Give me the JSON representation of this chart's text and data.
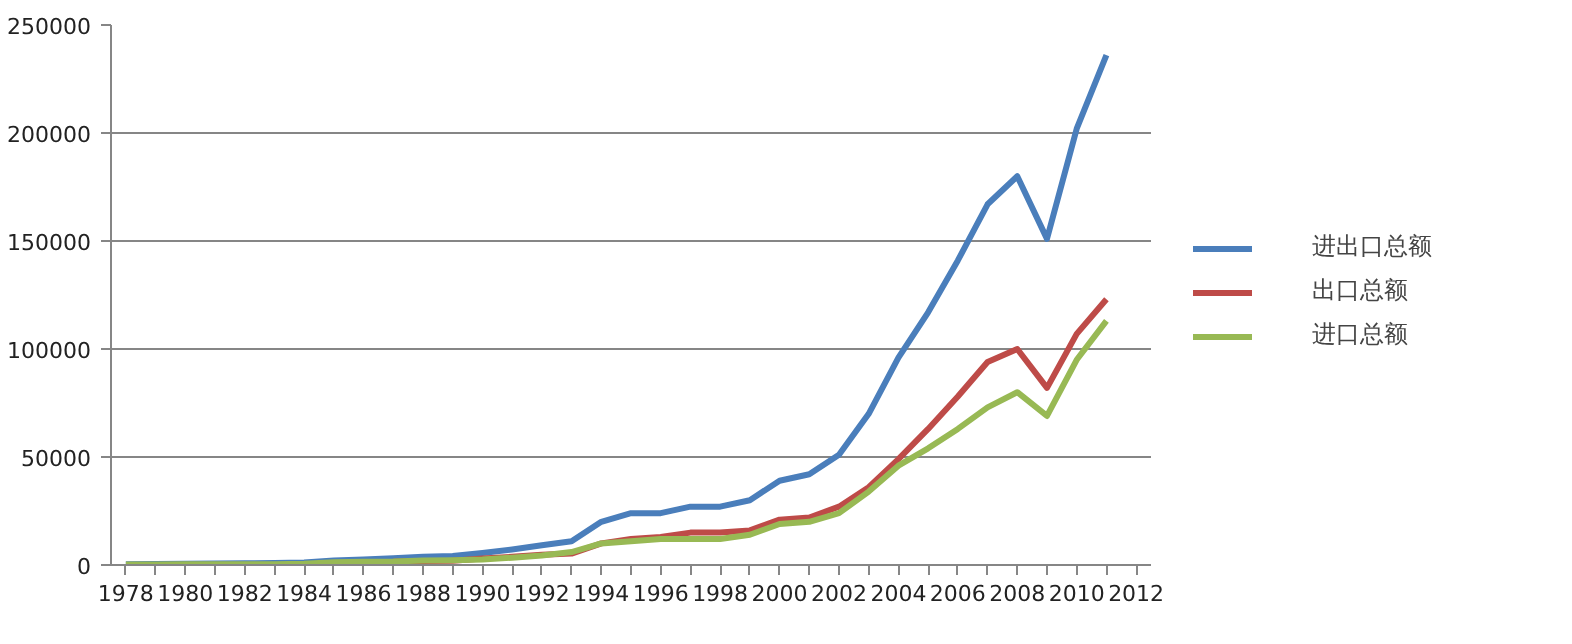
{
  "chart_data": {
    "type": "line",
    "x": [
      1978,
      1979,
      1980,
      1981,
      1982,
      1983,
      1984,
      1985,
      1986,
      1987,
      1988,
      1989,
      1990,
      1991,
      1992,
      1993,
      1994,
      1995,
      1996,
      1997,
      1998,
      1999,
      2000,
      2001,
      2002,
      2003,
      2004,
      2005,
      2006,
      2007,
      2008,
      2009,
      2010,
      2011
    ],
    "series": [
      {
        "name": "进出口总额",
        "color": "#4a7ebb",
        "values": [
          400,
          500,
          600,
          700,
          800,
          900,
          1200,
          2100,
          2600,
          3100,
          3800,
          4200,
          5600,
          7200,
          9100,
          11000,
          20000,
          24000,
          24000,
          27000,
          27000,
          30000,
          39000,
          42000,
          51000,
          70000,
          96000,
          117000,
          141000,
          167000,
          180000,
          151000,
          202000,
          236000
        ]
      },
      {
        "name": "出口总额",
        "color": "#be4b48",
        "values": [
          null,
          null,
          null,
          null,
          null,
          null,
          null,
          null,
          null,
          1500,
          1800,
          2000,
          3000,
          3800,
          4700,
          5300,
          10000,
          12000,
          13000,
          15000,
          15000,
          16000,
          21000,
          22000,
          27000,
          36000,
          49000,
          63000,
          78000,
          94000,
          100000,
          82000,
          107000,
          123000
        ]
      },
      {
        "name": "进口总额",
        "color": "#98b954",
        "values": [
          200,
          200,
          300,
          400,
          400,
          400,
          600,
          1300,
          1500,
          1600,
          2100,
          2200,
          2600,
          3400,
          4400,
          6000,
          10000,
          11000,
          12000,
          12000,
          12000,
          14000,
          19000,
          20000,
          24000,
          34000,
          46000,
          54000,
          63000,
          73000,
          80000,
          69000,
          95000,
          113000
        ]
      }
    ],
    "xlim": [
      1977.5,
      2012.5
    ],
    "xticks": [
      1978,
      {
        "value": 1979,
        "label": null
      },
      1980,
      {
        "value": 1981,
        "label": null
      },
      1982,
      {
        "value": 1983,
        "label": null
      },
      1984,
      {
        "value": 1985,
        "label": null
      },
      1986,
      {
        "value": 1987,
        "label": null
      },
      1988,
      {
        "value": 1989,
        "label": null
      },
      1990,
      {
        "value": 1991,
        "label": null
      },
      1992,
      {
        "value": 1993,
        "label": null
      },
      1994,
      {
        "value": 1995,
        "label": null
      },
      1996,
      {
        "value": 1997,
        "label": null
      },
      1998,
      {
        "value": 1999,
        "label": null
      },
      2000,
      {
        "value": 2001,
        "label": null
      },
      2002,
      {
        "value": 2003,
        "label": null
      },
      2004,
      {
        "value": 2005,
        "label": null
      },
      2006,
      {
        "value": 2007,
        "label": null
      },
      2008,
      {
        "value": 2009,
        "label": null
      },
      2010,
      {
        "value": 2011,
        "label": null
      },
      2012
    ],
    "ylim": [
      0,
      250000
    ],
    "yticks": [
      0,
      50000,
      100000,
      150000,
      200000,
      250000
    ],
    "grid": "y",
    "legend": "right",
    "line_style": "solid"
  }
}
